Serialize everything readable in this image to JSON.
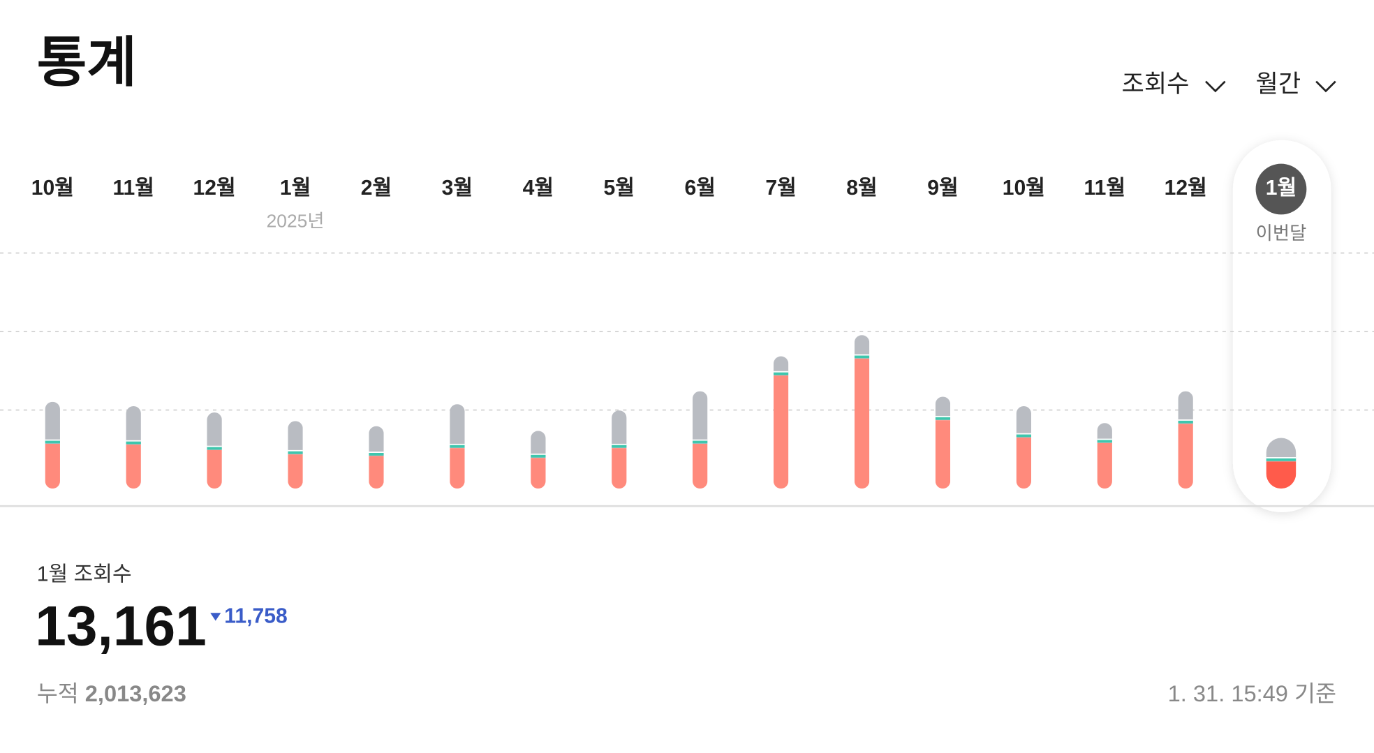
{
  "header": {
    "title": "통계",
    "filters": [
      "조회수",
      "월간"
    ]
  },
  "chart_data": {
    "type": "stacked-bar",
    "categories": [
      "10월",
      "11월",
      "12월",
      "1월",
      "2월",
      "3월",
      "4월",
      "5월",
      "6월",
      "7월",
      "8월",
      "9월",
      "10월",
      "11월",
      "12월",
      "1월"
    ],
    "year_label": "2025년",
    "current_label": "이번달",
    "series": [
      {
        "color": "#ff8a7c",
        "values": [
          11400,
          11200,
          9800,
          8700,
          8300,
          10300,
          7800,
          10300,
          11400,
          28800,
          33100,
          17400,
          13000,
          11600,
          16500,
          6900
        ]
      },
      {
        "color": "#b9bcc2",
        "values": [
          10700,
          9800,
          9600,
          8500,
          7600,
          11200,
          6900,
          9600,
          13400,
          4900,
          6000,
          6000,
          8000,
          5100,
          8300,
          6000
        ]
      }
    ],
    "highlight_color": "#ff5b4b",
    "ylim": [
      0,
      60000
    ],
    "yticks": [
      20000,
      40000,
      60000
    ],
    "grid": true
  },
  "summary": {
    "label": "1월 조회수",
    "value": "13,161",
    "change": "11,758",
    "total_label": "누적",
    "total": "2,013,623",
    "timestamp": "1. 31. 15:49 기준"
  }
}
